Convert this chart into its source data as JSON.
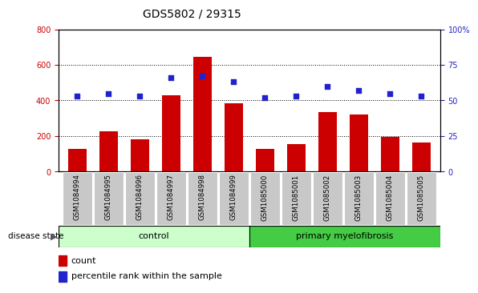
{
  "title": "GDS5802 / 29315",
  "samples": [
    "GSM1084994",
    "GSM1084995",
    "GSM1084996",
    "GSM1084997",
    "GSM1084998",
    "GSM1084999",
    "GSM1085000",
    "GSM1085001",
    "GSM1085002",
    "GSM1085003",
    "GSM1085004",
    "GSM1085005"
  ],
  "counts": [
    130,
    225,
    180,
    430,
    645,
    385,
    130,
    155,
    335,
    320,
    195,
    165
  ],
  "percentiles": [
    53,
    55,
    53,
    66,
    67,
    63,
    52,
    53,
    60,
    57,
    55,
    53
  ],
  "ylim_left": [
    0,
    800
  ],
  "ylim_right": [
    0,
    100
  ],
  "yticks_left": [
    0,
    200,
    400,
    600,
    800
  ],
  "yticks_right": [
    0,
    25,
    50,
    75,
    100
  ],
  "bar_color": "#cc0000",
  "dot_color": "#2222cc",
  "control_bg": "#ccffcc",
  "myelofibrosis_bg": "#44cc44",
  "tick_bg": "#c8c8c8",
  "disease_label": "disease state",
  "control_label": "control",
  "myelofibrosis_label": "primary myelofibrosis",
  "legend_count": "count",
  "legend_percentile": "percentile rank within the sample",
  "title_fontsize": 10,
  "tick_fontsize": 7,
  "label_fontsize": 8
}
